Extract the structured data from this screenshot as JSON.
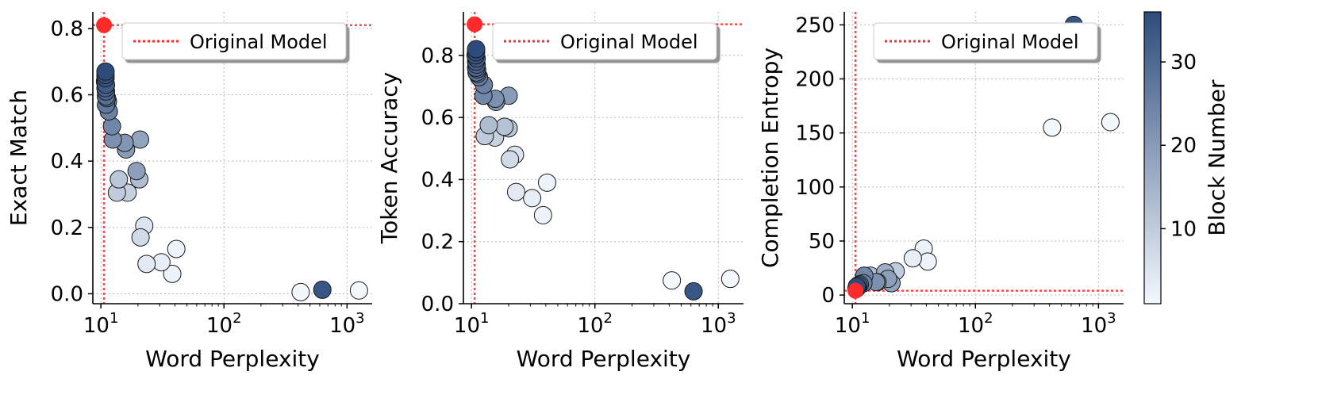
{
  "colors": {
    "reference": "#ff2a2a",
    "marker_edge": "#1a1a1a",
    "cmap_low": "#f3f8fe",
    "cmap_high": "#2d4c7c"
  },
  "legend": {
    "reference_label": "Original Model",
    "placement": "upper-center"
  },
  "colorbar": {
    "label": "Block Number",
    "min": 1,
    "max": 36,
    "ticks": [
      10,
      20,
      30
    ]
  },
  "chart_data": [
    {
      "type": "scatter",
      "xlabel": "Word Perplexity",
      "ylabel": "Exact Match",
      "xscale": "log",
      "xlim": [
        8.6,
        1600
      ],
      "ylim": [
        -0.03,
        0.85
      ],
      "xticks": [
        {
          "v": 10,
          "m": "10",
          "e": "1"
        },
        {
          "v": 100,
          "m": "10",
          "e": "2"
        },
        {
          "v": 1000,
          "m": "10",
          "e": "3"
        }
      ],
      "yticks": [
        0.0,
        0.2,
        0.4,
        0.6,
        0.8
      ],
      "ytick_decimals": 1,
      "grid": true,
      "reference": {
        "x": 10.6,
        "y": 0.81
      },
      "points": [
        {
          "x": 10.9,
          "y": 0.67,
          "block": 36
        },
        {
          "x": 10.9,
          "y": 0.66,
          "block": 35
        },
        {
          "x": 10.9,
          "y": 0.65,
          "block": 34
        },
        {
          "x": 11.0,
          "y": 0.63,
          "block": 33
        },
        {
          "x": 10.8,
          "y": 0.64,
          "block": 32
        },
        {
          "x": 10.9,
          "y": 0.62,
          "block": 31
        },
        {
          "x": 11.0,
          "y": 0.61,
          "block": 30
        },
        {
          "x": 11.0,
          "y": 0.595,
          "block": 29
        },
        {
          "x": 11.2,
          "y": 0.59,
          "block": 28
        },
        {
          "x": 11.0,
          "y": 0.57,
          "block": 27
        },
        {
          "x": 11.4,
          "y": 0.58,
          "block": 26
        },
        {
          "x": 11.6,
          "y": 0.55,
          "block": 25
        },
        {
          "x": 12.3,
          "y": 0.505,
          "block": 24
        },
        {
          "x": 12.5,
          "y": 0.465,
          "block": 22
        },
        {
          "x": 15.6,
          "y": 0.455,
          "block": 21
        },
        {
          "x": 16.0,
          "y": 0.435,
          "block": 20
        },
        {
          "x": 19.5,
          "y": 0.37,
          "block": 19
        },
        {
          "x": 20.8,
          "y": 0.465,
          "block": 18
        },
        {
          "x": 20.5,
          "y": 0.345,
          "block": 13
        },
        {
          "x": 14.0,
          "y": 0.345,
          "block": 11
        },
        {
          "x": 13.5,
          "y": 0.305,
          "block": 10
        },
        {
          "x": 16.5,
          "y": 0.305,
          "block": 9
        },
        {
          "x": 21.0,
          "y": 0.17,
          "block": 7
        },
        {
          "x": 22.5,
          "y": 0.205,
          "block": 5
        },
        {
          "x": 23.5,
          "y": 0.09,
          "block": 4
        },
        {
          "x": 31.0,
          "y": 0.095,
          "block": 3
        },
        {
          "x": 41.0,
          "y": 0.135,
          "block": 2
        },
        {
          "x": 38.0,
          "y": 0.06,
          "block": 2
        },
        {
          "x": 420,
          "y": 0.005,
          "block": 1
        },
        {
          "x": 1250,
          "y": 0.01,
          "block": 1
        },
        {
          "x": 630,
          "y": 0.012,
          "block": 34
        }
      ]
    },
    {
      "type": "scatter",
      "xlabel": "Word Perplexity",
      "ylabel": "Token Accuracy",
      "xscale": "log",
      "xlim": [
        8.6,
        1600
      ],
      "ylim": [
        0.0,
        0.94
      ],
      "xticks": [
        {
          "v": 10,
          "m": "10",
          "e": "1"
        },
        {
          "v": 100,
          "m": "10",
          "e": "2"
        },
        {
          "v": 1000,
          "m": "10",
          "e": "3"
        }
      ],
      "yticks": [
        0.0,
        0.2,
        0.4,
        0.6,
        0.8
      ],
      "ytick_decimals": 1,
      "grid": true,
      "reference": {
        "x": 10.6,
        "y": 0.9
      },
      "points": [
        {
          "x": 10.9,
          "y": 0.82,
          "block": 36
        },
        {
          "x": 10.9,
          "y": 0.81,
          "block": 35
        },
        {
          "x": 10.8,
          "y": 0.8,
          "block": 34
        },
        {
          "x": 11.0,
          "y": 0.79,
          "block": 33
        },
        {
          "x": 10.9,
          "y": 0.78,
          "block": 32
        },
        {
          "x": 11.0,
          "y": 0.77,
          "block": 31
        },
        {
          "x": 10.9,
          "y": 0.76,
          "block": 30
        },
        {
          "x": 11.1,
          "y": 0.755,
          "block": 29
        },
        {
          "x": 11.0,
          "y": 0.745,
          "block": 28
        },
        {
          "x": 11.2,
          "y": 0.74,
          "block": 27
        },
        {
          "x": 11.5,
          "y": 0.73,
          "block": 26
        },
        {
          "x": 12.6,
          "y": 0.705,
          "block": 25
        },
        {
          "x": 12.5,
          "y": 0.67,
          "block": 24
        },
        {
          "x": 15.6,
          "y": 0.66,
          "block": 22
        },
        {
          "x": 15.8,
          "y": 0.65,
          "block": 21
        },
        {
          "x": 20.0,
          "y": 0.67,
          "block": 20
        },
        {
          "x": 13.8,
          "y": 0.575,
          "block": 13
        },
        {
          "x": 18.5,
          "y": 0.57,
          "block": 12
        },
        {
          "x": 20.0,
          "y": 0.565,
          "block": 11
        },
        {
          "x": 12.8,
          "y": 0.54,
          "block": 10
        },
        {
          "x": 15.5,
          "y": 0.535,
          "block": 9
        },
        {
          "x": 20.5,
          "y": 0.465,
          "block": 7
        },
        {
          "x": 22.5,
          "y": 0.48,
          "block": 5
        },
        {
          "x": 23.0,
          "y": 0.36,
          "block": 4
        },
        {
          "x": 31.0,
          "y": 0.34,
          "block": 3
        },
        {
          "x": 41.0,
          "y": 0.39,
          "block": 2
        },
        {
          "x": 38.0,
          "y": 0.285,
          "block": 2
        },
        {
          "x": 420,
          "y": 0.075,
          "block": 1
        },
        {
          "x": 1250,
          "y": 0.08,
          "block": 1
        },
        {
          "x": 630,
          "y": 0.04,
          "block": 34
        }
      ]
    },
    {
      "type": "scatter",
      "xlabel": "Word Perplexity",
      "ylabel": "Completion Entropy",
      "xscale": "log",
      "xlim": [
        8.6,
        1600
      ],
      "ylim": [
        -8,
        262
      ],
      "xticks": [
        {
          "v": 10,
          "m": "10",
          "e": "1"
        },
        {
          "v": 100,
          "m": "10",
          "e": "2"
        },
        {
          "v": 1000,
          "m": "10",
          "e": "3"
        }
      ],
      "yticks": [
        0,
        50,
        100,
        150,
        200,
        250
      ],
      "ytick_decimals": 0,
      "grid": true,
      "reference": {
        "x": 10.6,
        "y": 4
      },
      "points": [
        {
          "x": 10.9,
          "y": 8,
          "block": 36
        },
        {
          "x": 11.0,
          "y": 7,
          "block": 34
        },
        {
          "x": 10.8,
          "y": 6,
          "block": 32
        },
        {
          "x": 11.2,
          "y": 9,
          "block": 30
        },
        {
          "x": 11.5,
          "y": 10,
          "block": 28
        },
        {
          "x": 12.3,
          "y": 11,
          "block": 25
        },
        {
          "x": 12.5,
          "y": 18,
          "block": 24
        },
        {
          "x": 15.6,
          "y": 12,
          "block": 22
        },
        {
          "x": 16.0,
          "y": 12,
          "block": 21
        },
        {
          "x": 19.5,
          "y": 15,
          "block": 19
        },
        {
          "x": 20.8,
          "y": 11,
          "block": 18
        },
        {
          "x": 18.5,
          "y": 21,
          "block": 16
        },
        {
          "x": 14.0,
          "y": 18,
          "block": 13
        },
        {
          "x": 22.5,
          "y": 22,
          "block": 10
        },
        {
          "x": 21.0,
          "y": 19,
          "block": 8
        },
        {
          "x": 31.0,
          "y": 34,
          "block": 3
        },
        {
          "x": 38.0,
          "y": 43,
          "block": 2
        },
        {
          "x": 41.0,
          "y": 31,
          "block": 2
        },
        {
          "x": 420,
          "y": 155,
          "block": 1
        },
        {
          "x": 1250,
          "y": 160,
          "block": 1
        },
        {
          "x": 630,
          "y": 250,
          "block": 34
        }
      ]
    }
  ]
}
